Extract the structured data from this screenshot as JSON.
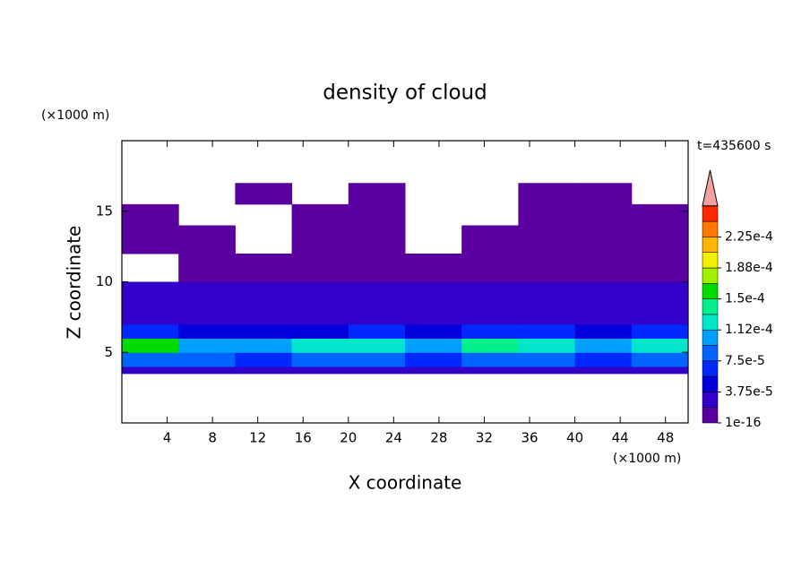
{
  "chart_data": {
    "type": "contour",
    "title": "density of cloud",
    "time_label": "t=435600 s",
    "x_label": "X coordinate",
    "y_label": "Z coordinate",
    "x_unit": "(×1000 m)",
    "y_unit": "(×1000 m)",
    "xlim": [
      0,
      50
    ],
    "ylim": [
      0,
      20
    ],
    "xticks": [
      4,
      8,
      12,
      16,
      20,
      24,
      28,
      32,
      36,
      40,
      44,
      48
    ],
    "yticks": [
      5,
      10,
      15
    ],
    "field": {
      "x_edges": [
        0,
        5,
        10,
        15,
        20,
        25,
        30,
        35,
        40,
        45,
        50
      ],
      "z_edges": [
        3.5,
        4,
        5,
        6,
        7,
        8,
        10,
        12,
        14,
        15.5,
        17
      ],
      "values": [
        [
          3e-05,
          3e-05,
          3e-05,
          3e-05,
          3e-05,
          3e-05,
          3e-05,
          3e-05,
          3e-05,
          3e-05
        ],
        [
          9e-05,
          8e-05,
          7e-05,
          9e-05,
          8e-05,
          7e-05,
          8e-05,
          9e-05,
          7e-05,
          8e-05
        ],
        [
          0.00015,
          0.00011,
          0.0001,
          0.00012,
          0.00013,
          0.0001,
          0.00014,
          0.00012,
          0.0001,
          0.00013
        ],
        [
          6e-05,
          5e-05,
          4e-05,
          5e-05,
          6e-05,
          4e-05,
          7e-05,
          6e-05,
          5e-05,
          7e-05
        ],
        [
          3e-05,
          2.5e-05,
          2e-05,
          3e-05,
          3e-05,
          2e-05,
          3e-05,
          3e-05,
          2e-05,
          3e-05
        ],
        [
          2.5e-05,
          2e-05,
          2e-05,
          2e-05,
          2.5e-05,
          2e-05,
          2e-05,
          2e-05,
          2e-05,
          2.5e-05
        ],
        [
          null,
          1e-05,
          1e-05,
          1e-05,
          1e-05,
          1e-05,
          1e-05,
          1e-05,
          1e-05,
          1e-05
        ],
        [
          1e-05,
          5e-06,
          null,
          1e-05,
          1e-05,
          null,
          1e-05,
          1e-05,
          1e-05,
          1e-05
        ],
        [
          5e-06,
          null,
          null,
          5e-06,
          5e-06,
          null,
          null,
          5e-06,
          5e-06,
          5e-06
        ],
        [
          null,
          null,
          5e-06,
          null,
          5e-06,
          null,
          null,
          5e-06,
          5e-06,
          null
        ]
      ]
    },
    "colorbar": {
      "colors": [
        "#5a00a0",
        "#3200c8",
        "#0000dc",
        "#0028ff",
        "#0064ff",
        "#00a0ff",
        "#00e6c8",
        "#00f08c",
        "#00dc00",
        "#a0f000",
        "#f0f000",
        "#ffb400",
        "#ff7800",
        "#ff2800"
      ],
      "over_color": "#f4a0a0",
      "ticks": [
        {
          "value": 1e-16,
          "label": "1e-16"
        },
        {
          "value": 3.75e-05,
          "label": "3.75e-5"
        },
        {
          "value": 7.5e-05,
          "label": "7.5e-5"
        },
        {
          "value": 0.000112,
          "label": "1.12e-4"
        },
        {
          "value": 0.00015,
          "label": "1.5e-4"
        },
        {
          "value": 0.000188,
          "label": "1.88e-4"
        },
        {
          "value": 0.000225,
          "label": "2.25e-4"
        }
      ]
    }
  }
}
